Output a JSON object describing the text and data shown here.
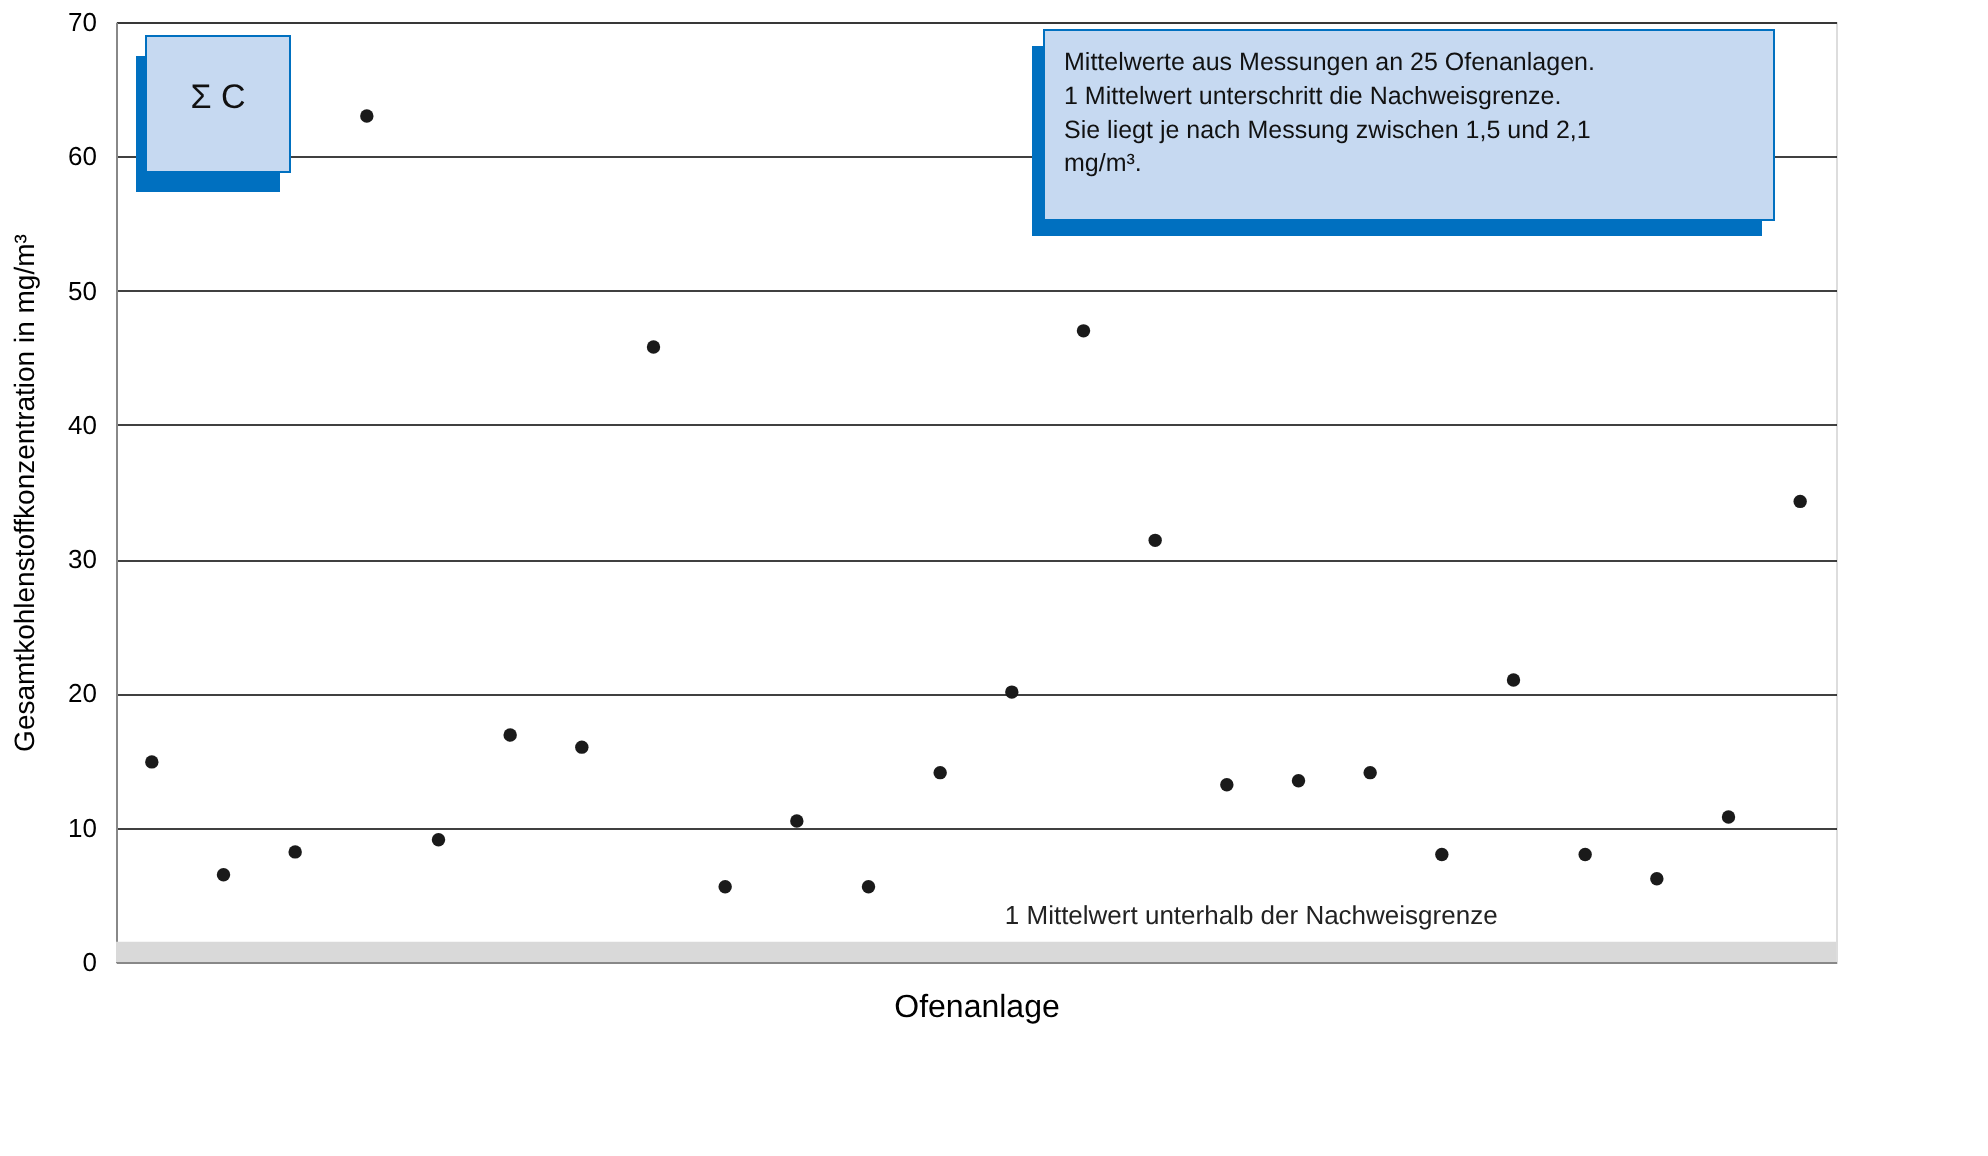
{
  "chart_data": {
    "type": "scatter",
    "ylabel": "Gesamtkohlenstoffkonzentration in mg/m³",
    "xlabel": "Ofenanlage",
    "categories": [
      null,
      null,
      null,
      null,
      null,
      null,
      null,
      null,
      null,
      null,
      null,
      null,
      null,
      null,
      null,
      null,
      null,
      null,
      null,
      null,
      null,
      null,
      null,
      null
    ],
    "values": [
      14.9,
      6.5,
      8.2,
      63.0,
      9.1,
      16.9,
      16.0,
      45.8,
      5.6,
      10.5,
      5.6,
      14.1,
      20.1,
      47.0,
      31.4,
      13.2,
      13.5,
      14.1,
      8.0,
      21.0,
      8.0,
      6.2,
      10.8,
      34.3
    ],
    "color": "#1a1a1a",
    "marker": "circle",
    "ylim": [
      0,
      70
    ],
    "yticks": [
      0,
      10,
      20,
      30,
      40,
      50,
      60,
      70
    ],
    "grid": "y",
    "tick_labels": "y",
    "bands": [
      {
        "axis": "y",
        "from": 0,
        "to": 1.5,
        "label": "1 Mittelwert unterhalb der Nachweisgrenze",
        "color": "#d9d9d9"
      }
    ],
    "annotations": [
      "Σ C",
      "Mittelwerte aus Messungen an 25 Ofenanlagen.\n1 Mittelwert unterschritt die Nachweisgrenze.\nSie liegt je nach Messung zwischen 1,5 und 2,1\nmg/m³."
    ]
  }
}
